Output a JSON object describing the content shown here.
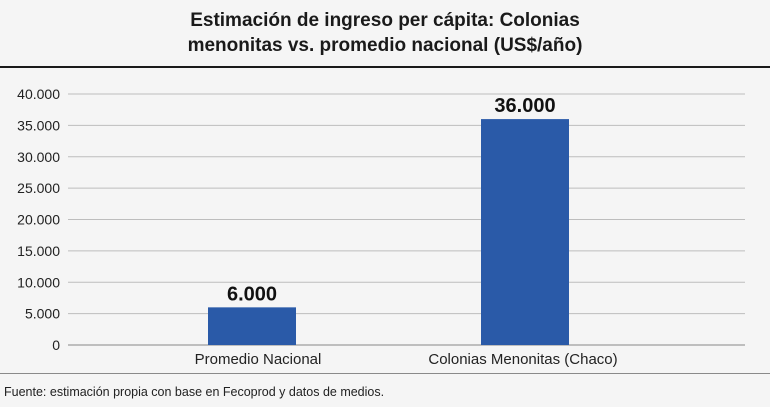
{
  "chart_data": {
    "type": "bar",
    "title_lines": [
      "Estimación de ingreso per cápita: Colonias",
      "menonitas vs. promedio nacional (US$/año)"
    ],
    "categories": [
      "Promedio Nacional",
      "Colonias Menonitas (Chaco)"
    ],
    "values": [
      6000,
      36000
    ],
    "data_labels": [
      "6.000",
      "36.000"
    ],
    "ylim": [
      0,
      40000
    ],
    "yticks": [
      0,
      5000,
      10000,
      15000,
      20000,
      25000,
      30000,
      35000,
      40000
    ],
    "ytick_labels": [
      "0",
      "5.000",
      "10.000",
      "15.000",
      "20.000",
      "25.000",
      "30.000",
      "35.000",
      "40.000"
    ],
    "grid": true,
    "bar_color": "#2a5aa8",
    "source": "Fuente: estimación propia con base en Fecoprod y datos de medios."
  }
}
